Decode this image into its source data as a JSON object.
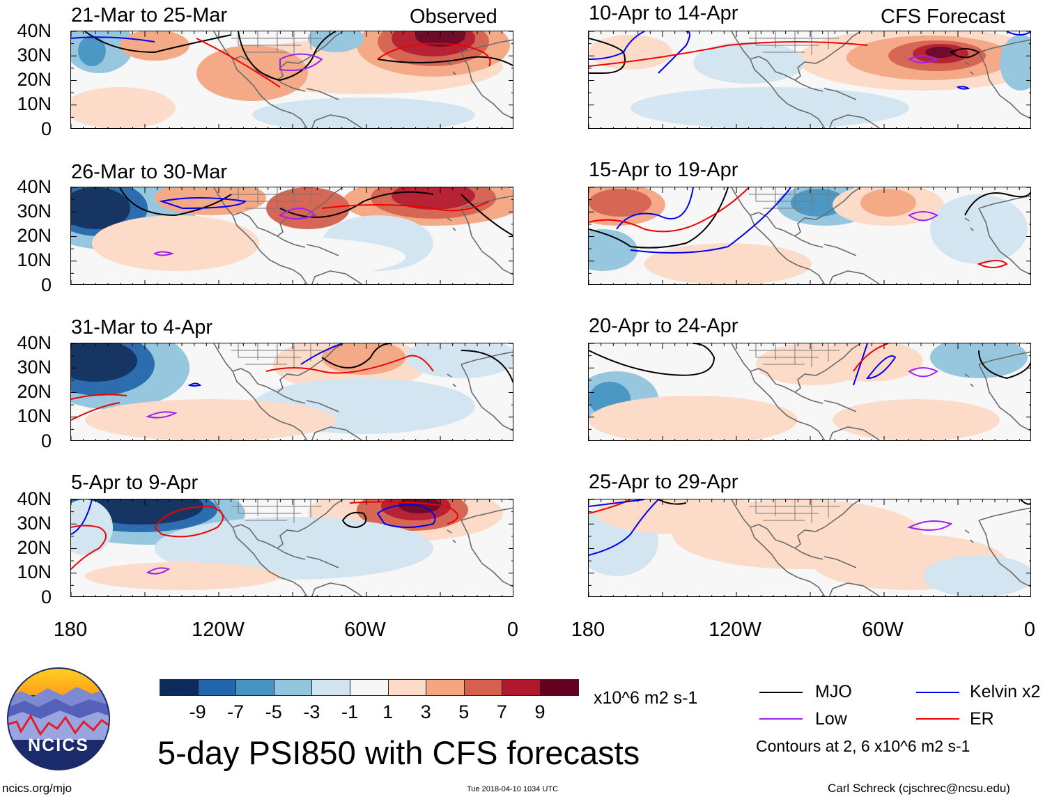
{
  "panels": [
    {
      "title": "21-Mar to 25-Mar",
      "corner_label": "Observed"
    },
    {
      "title": "26-Mar to 30-Mar",
      "corner_label": ""
    },
    {
      "title": "31-Mar to 4-Apr",
      "corner_label": ""
    },
    {
      "title": "5-Apr to 9-Apr",
      "corner_label": ""
    },
    {
      "title": "10-Apr to 14-Apr",
      "corner_label": "CFS Forecast"
    },
    {
      "title": "15-Apr to 19-Apr",
      "corner_label": ""
    },
    {
      "title": "20-Apr to 24-Apr",
      "corner_label": ""
    },
    {
      "title": "25-Apr to 29-Apr",
      "corner_label": ""
    }
  ],
  "y_axis_labels": [
    "40N",
    "30N",
    "20N",
    "10N",
    "0"
  ],
  "x_axis_labels": [
    "180",
    "120W",
    "60W",
    "0"
  ],
  "colorbar": {
    "tick_labels": [
      "-9",
      "-7",
      "-5",
      "-3",
      "-1",
      "1",
      "3",
      "5",
      "7",
      "9"
    ],
    "colors": [
      "#0b2b5c",
      "#2166ac",
      "#4393c3",
      "#92c5de",
      "#d1e5f0",
      "#f7f7f7",
      "#fddbc7",
      "#f4a582",
      "#d6604d",
      "#b2182b",
      "#67001f"
    ],
    "units": "x10^6 m2 s-1"
  },
  "legend": {
    "items": [
      {
        "label": "MJO",
        "color": "#000000"
      },
      {
        "label": "Kelvin x2",
        "color": "#0000ee"
      },
      {
        "label": "Low",
        "color": "#a020f0"
      },
      {
        "label": "ER",
        "color": "#ee0000"
      }
    ],
    "note": "Contours at 2, 6 x10^6 m2 s-1"
  },
  "main_title": "5-day PSI850 with CFS forecasts",
  "logo_text": "NCICS",
  "footer": {
    "left": "ncics.org/mjo",
    "center": "Tue 2018-04-10 1034 UTC",
    "right": "Carl Schreck (cjschrec@ncsu.edu)"
  }
}
